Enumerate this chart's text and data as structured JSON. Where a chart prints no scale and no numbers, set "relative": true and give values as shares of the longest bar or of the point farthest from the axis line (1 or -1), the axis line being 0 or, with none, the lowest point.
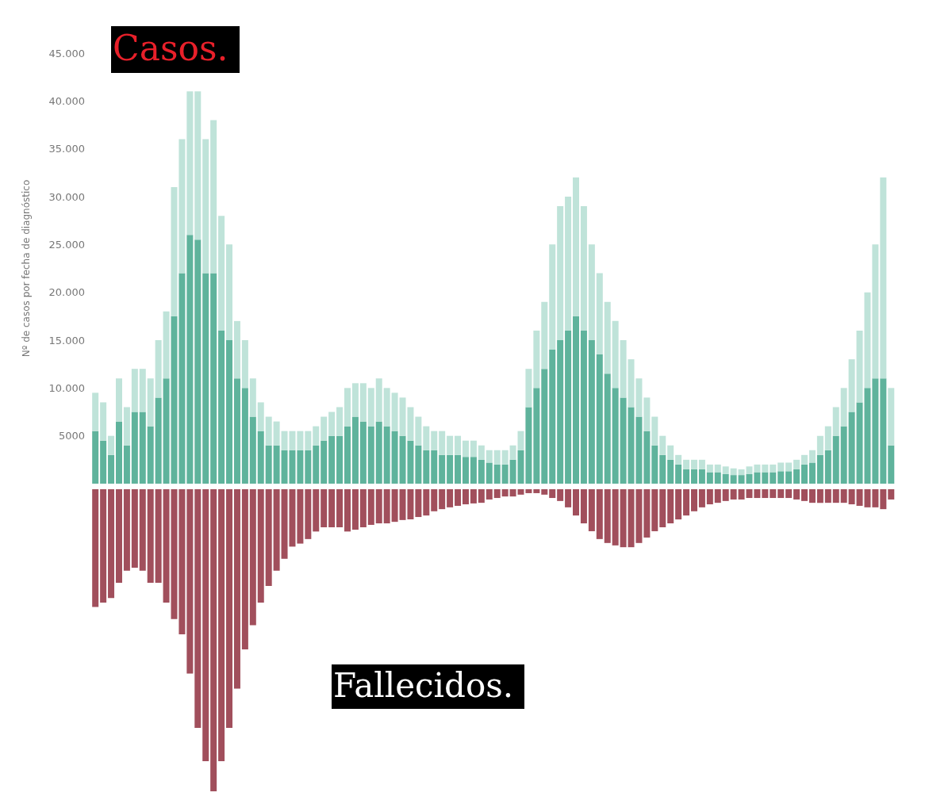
{
  "chart_data": [
    {
      "type": "bar",
      "title": "Casos.",
      "ylabel": "Nº de casos por fecha de diagnóstico",
      "stacked": true,
      "tick_labels": "y",
      "grid": false,
      "categories": [
        null,
        null,
        null,
        null,
        null,
        null,
        null,
        null,
        null,
        null,
        null,
        null,
        null,
        null,
        null,
        null,
        null,
        null,
        null,
        null,
        null,
        null,
        null,
        null,
        null,
        null,
        null,
        null,
        null,
        null,
        null,
        null,
        null,
        null,
        null,
        null,
        null,
        null,
        null,
        null,
        null,
        null,
        null,
        null,
        null,
        null,
        null,
        null,
        null,
        null,
        null,
        null,
        null,
        null,
        null,
        null,
        null,
        null,
        null,
        null,
        null,
        null,
        null,
        null,
        null,
        null,
        null,
        null,
        null,
        null,
        null,
        null,
        null,
        null,
        null,
        null,
        null,
        null,
        null,
        null,
        null,
        null,
        null,
        null,
        null,
        null,
        null,
        null,
        null,
        null,
        null,
        null,
        null,
        null,
        null,
        null,
        null,
        null,
        null,
        null,
        null,
        null
      ],
      "ylim": [
        0,
        45000
      ],
      "yticks": [
        5000,
        {
          "value": 10000,
          "label": "10.000"
        },
        {
          "value": 15000,
          "label": "15.000"
        },
        {
          "value": 20000,
          "label": "20.000"
        },
        {
          "value": 25000,
          "label": "25.000"
        },
        {
          "value": 30000,
          "label": "30.000"
        },
        {
          "value": 35000,
          "label": "35.000"
        },
        {
          "value": 40000,
          "label": "40.000"
        },
        {
          "value": 45000,
          "label": "45.000"
        }
      ],
      "series": [
        {
          "color": "#5fb39c",
          "values": [
            5500,
            4500,
            3000,
            6500,
            4000,
            7500,
            7500,
            6000,
            9000,
            11000,
            17500,
            22000,
            26000,
            25500,
            22000,
            22000,
            16000,
            15000,
            11000,
            10000,
            7000,
            5500,
            4000,
            4000,
            3500,
            3500,
            3500,
            3500,
            4000,
            4500,
            5000,
            5000,
            6000,
            7000,
            6500,
            6000,
            6500,
            6000,
            5500,
            5000,
            4500,
            4000,
            3500,
            3500,
            3000,
            3000,
            3000,
            2800,
            2800,
            2500,
            2200,
            2000,
            2000,
            2500,
            3500,
            8000,
            10000,
            12000,
            14000,
            15000,
            16000,
            17500,
            16000,
            15000,
            13500,
            11500,
            10000,
            9000,
            8000,
            7000,
            5500,
            4000,
            3000,
            2500,
            2000,
            1500,
            1500,
            1500,
            1200,
            1200,
            1000,
            900,
            900,
            1000,
            1200,
            1200,
            1200,
            1300,
            1300,
            1500,
            2000,
            2200,
            3000,
            3500,
            5000,
            6000,
            7500,
            8500,
            10000,
            11000,
            11000,
            4000
          ]
        },
        {
          "color": "#bfe3d9",
          "values": [
            4000,
            4000,
            2000,
            4500,
            4000,
            4500,
            4500,
            5000,
            6000,
            7000,
            13500,
            14000,
            15000,
            15500,
            14000,
            16000,
            12000,
            10000,
            6000,
            5000,
            4000,
            3000,
            3000,
            2500,
            2000,
            2000,
            2000,
            2000,
            2000,
            2500,
            2500,
            3000,
            4000,
            3500,
            4000,
            4000,
            4500,
            4000,
            4000,
            4000,
            3500,
            3000,
            2500,
            2000,
            2500,
            2000,
            2000,
            1700,
            1700,
            1500,
            1300,
            1500,
            1500,
            1500,
            2000,
            4000,
            6000,
            7000,
            11000,
            14000,
            14000,
            14500,
            13000,
            10000,
            8500,
            7500,
            7000,
            6000,
            5000,
            4000,
            3500,
            3000,
            2000,
            1500,
            1000,
            1000,
            1000,
            1000,
            800,
            800,
            800,
            700,
            600,
            800,
            800,
            800,
            800,
            900,
            900,
            1000,
            1000,
            1300,
            2000,
            2500,
            3000,
            4000,
            5500,
            7500,
            10000,
            14000,
            21000,
            6000
          ]
        }
      ]
    },
    {
      "type": "bar",
      "title": "Fallecidos.",
      "relative": true,
      "tick_labels": false,
      "grid": false,
      "categories": [
        null,
        null,
        null,
        null,
        null,
        null,
        null,
        null,
        null,
        null,
        null,
        null,
        null,
        null,
        null,
        null,
        null,
        null,
        null,
        null,
        null,
        null,
        null,
        null,
        null,
        null,
        null,
        null,
        null,
        null,
        null,
        null,
        null,
        null,
        null,
        null,
        null,
        null,
        null,
        null,
        null,
        null,
        null,
        null,
        null,
        null,
        null,
        null,
        null,
        null,
        null,
        null,
        null,
        null,
        null,
        null,
        null,
        null,
        null,
        null,
        null,
        null,
        null,
        null,
        null,
        null,
        null,
        null,
        null,
        null,
        null,
        null,
        null,
        null,
        null,
        null,
        null,
        null,
        null,
        null,
        null,
        null,
        null,
        null,
        null,
        null,
        null,
        null,
        null,
        null,
        null,
        null,
        null,
        null,
        null,
        null,
        null,
        null,
        null,
        null,
        null,
        null
      ],
      "series": [
        {
          "color": "#a14f5c",
          "values": [
            -0.39,
            -0.375,
            -0.36,
            -0.31,
            -0.27,
            -0.26,
            -0.27,
            -0.31,
            -0.31,
            -0.375,
            -0.43,
            -0.48,
            -0.61,
            -0.79,
            -0.9,
            -1,
            -0.9,
            -0.79,
            -0.66,
            -0.53,
            -0.45,
            -0.375,
            -0.32,
            -0.27,
            -0.23,
            -0.19,
            -0.18,
            -0.165,
            -0.14,
            -0.126,
            -0.126,
            -0.126,
            -0.14,
            -0.134,
            -0.126,
            -0.118,
            -0.113,
            -0.113,
            -0.108,
            -0.102,
            -0.1,
            -0.092,
            -0.087,
            -0.073,
            -0.066,
            -0.06,
            -0.055,
            -0.05,
            -0.047,
            -0.045,
            -0.034,
            -0.029,
            -0.024,
            -0.024,
            -0.018,
            -0.013,
            -0.013,
            -0.018,
            -0.029,
            -0.039,
            -0.06,
            -0.087,
            -0.113,
            -0.139,
            -0.165,
            -0.178,
            -0.186,
            -0.192,
            -0.192,
            -0.178,
            -0.16,
            -0.139,
            -0.126,
            -0.113,
            -0.1,
            -0.087,
            -0.073,
            -0.06,
            -0.05,
            -0.045,
            -0.039,
            -0.034,
            -0.034,
            -0.029,
            -0.029,
            -0.029,
            -0.029,
            -0.029,
            -0.029,
            -0.034,
            -0.039,
            -0.045,
            -0.045,
            -0.045,
            -0.045,
            -0.045,
            -0.05,
            -0.055,
            -0.06,
            -0.06,
            -0.066,
            -0.034
          ]
        }
      ]
    }
  ]
}
